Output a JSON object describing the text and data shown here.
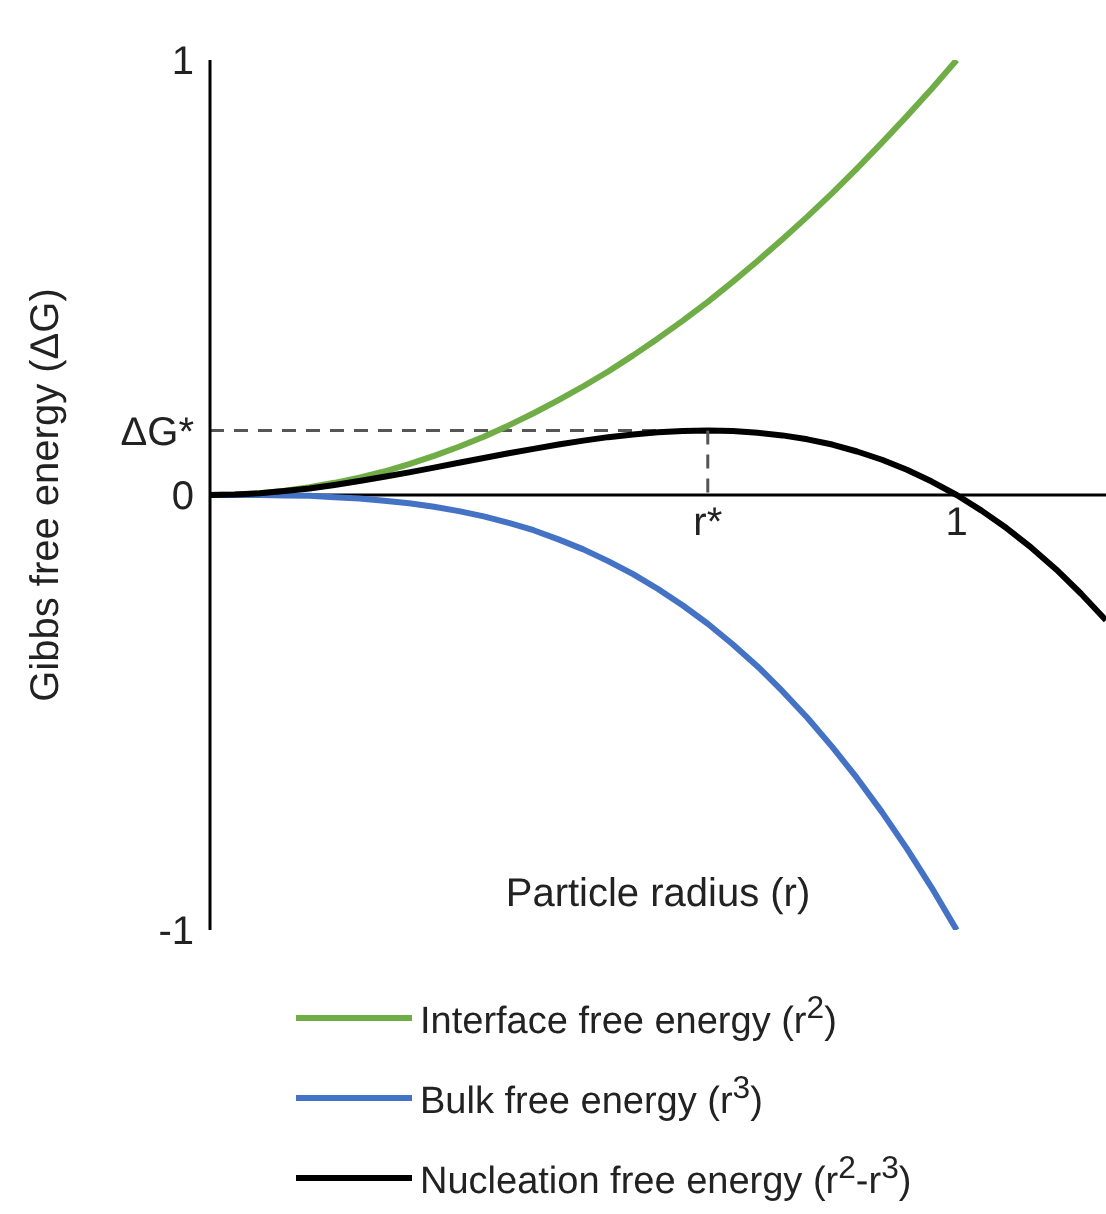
{
  "chart_data": {
    "type": "line",
    "xlabel": "Particle radius (r)",
    "ylabel": "Gibbs free energy (ΔG)",
    "categories": [
      null,
      null,
      null,
      null,
      null,
      null,
      null,
      null,
      null,
      null,
      null,
      null,
      null,
      null,
      null,
      null,
      null,
      null,
      null,
      null,
      "r*",
      null,
      null,
      null,
      null,
      null,
      null,
      null,
      null,
      null,
      "1",
      null,
      null,
      null,
      null,
      null,
      null
    ],
    "series": [
      {
        "name": "Interface free energy (r$^{2}$)",
        "color": "#70ad47",
        "values": [
          0,
          0.001,
          0.004,
          0.01,
          0.018,
          0.028,
          0.04,
          0.054,
          0.071,
          0.09,
          0.111,
          0.134,
          0.16,
          0.188,
          0.218,
          0.25,
          0.284,
          0.321,
          0.36,
          0.401,
          0.444,
          0.49,
          0.538,
          0.588,
          0.64,
          0.694,
          0.751,
          0.81,
          0.871,
          0.934,
          1,
          null,
          null,
          null,
          null,
          null,
          null
        ]
      },
      {
        "name": "Bulk free energy (r$^{3}$)",
        "color": "#4472c4",
        "values": [
          0,
          0,
          0,
          -0.001,
          -0.002,
          -0.005,
          -0.008,
          -0.013,
          -0.019,
          -0.027,
          -0.037,
          -0.049,
          -0.064,
          -0.081,
          -0.102,
          -0.125,
          -0.152,
          -0.182,
          -0.216,
          -0.254,
          -0.296,
          -0.343,
          -0.394,
          -0.451,
          -0.512,
          -0.579,
          -0.651,
          -0.729,
          -0.813,
          -0.903,
          -1,
          null,
          null,
          null,
          null,
          null,
          null
        ]
      },
      {
        "name": "Nucleation free energy (r$^{2}$-r$^{3}$)",
        "color": "#000000",
        "values": [
          0,
          0.001,
          0.004,
          0.009,
          0.015,
          0.023,
          0.032,
          0.042,
          0.052,
          0.063,
          0.074,
          0.085,
          0.096,
          0.106,
          0.116,
          0.125,
          0.133,
          0.139,
          0.144,
          0.147,
          0.148,
          0.147,
          0.143,
          0.137,
          0.128,
          0.116,
          0.1,
          0.081,
          0.058,
          0.031,
          0,
          -0.036,
          -0.076,
          -0.121,
          -0.171,
          -0.227,
          -0.288
        ]
      }
    ],
    "ylim": [
      -1,
      1
    ],
    "yticks": [
      -1,
      0,
      {
        "value": 0.148,
        "label": "ΔG*"
      },
      1
    ],
    "ref_lines": [
      {
        "axis": "y",
        "value": 0.148,
        "label": null,
        "color": "#555555",
        "line_style": "dashed"
      }
    ],
    "legend": "bottom",
    "marker": "none",
    "line_style": "solid"
  }
}
